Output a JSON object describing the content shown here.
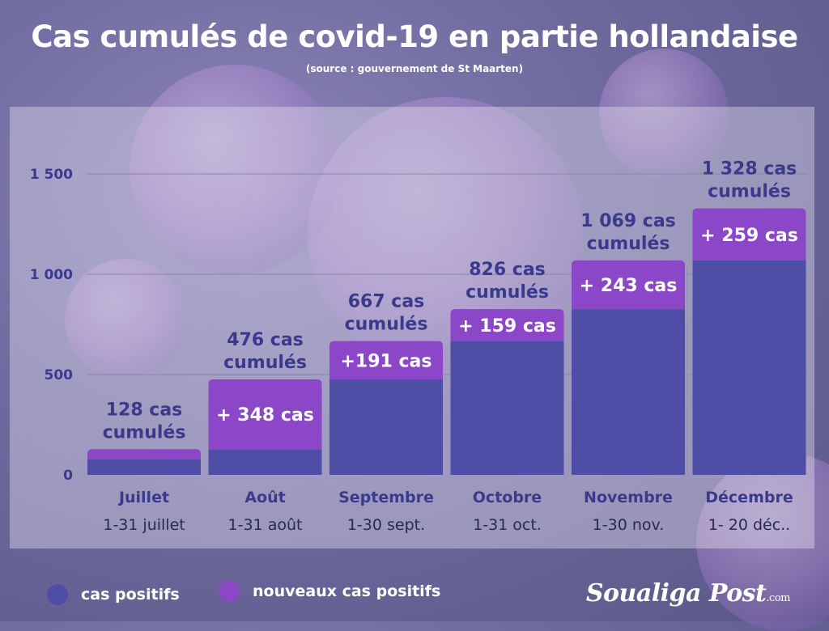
{
  "header": {
    "title": "Cas cumulés de covid-19 en partie hollandaise",
    "subtitle": "(source : gouvernement de St Maarten)"
  },
  "colors": {
    "cumulative": "#4f4ea6",
    "new": "#8b47c8",
    "axis_text": "#3a3a8c"
  },
  "chart_data": {
    "type": "bar",
    "stacked": true,
    "categories": [
      "Juillet",
      "Août",
      "Septembre",
      "Octobre",
      "Novembre",
      "Décembre"
    ],
    "ranges": [
      "1-31 juillet",
      "1-31 août",
      "1-30 sept.",
      "1-31 oct.",
      "1-30 nov.",
      "1- 20 déc.."
    ],
    "series": [
      {
        "name": "cas positifs",
        "values": [
          78,
          128,
          476,
          667,
          826,
          1069
        ]
      },
      {
        "name": "nouveaux cas positifs",
        "values": [
          50,
          348,
          191,
          159,
          243,
          259
        ]
      }
    ],
    "totals": [
      128,
      476,
      667,
      826,
      1069,
      1328
    ],
    "top_labels": [
      [
        "128 cas",
        "cumulés"
      ],
      [
        "476 cas",
        "cumulés"
      ],
      [
        "667 cas",
        "cumulés"
      ],
      [
        "826 cas",
        "cumulés"
      ],
      [
        "1 069 cas",
        "cumulés"
      ],
      [
        "1 328 cas",
        "cumulés"
      ]
    ],
    "increment_labels": [
      "",
      "+ 348 cas",
      "+191 cas",
      "+ 159 cas",
      "+ 243 cas",
      "+ 259 cas"
    ],
    "yticks": [
      0,
      500,
      1000,
      1500
    ],
    "ytick_labels": [
      "0",
      "500",
      "1 000",
      "1 500"
    ],
    "ylim": [
      0,
      1500
    ],
    "grid": true,
    "legend_position": "bottom-left"
  },
  "legend": [
    {
      "label": "cas positifs",
      "color": "#4f4ea6"
    },
    {
      "label": "nouveaux cas positifs",
      "color": "#8b47c8"
    }
  ],
  "brand": {
    "name": "Soualiga Post",
    "suffix": ".com"
  }
}
